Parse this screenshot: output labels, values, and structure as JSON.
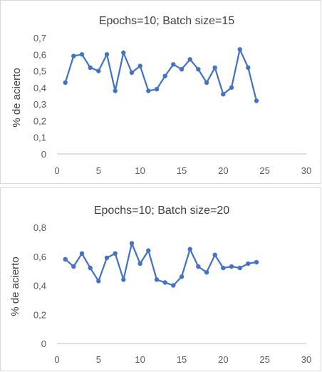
{
  "chart_data": [
    {
      "type": "line",
      "title": "Epochs=10; Batch size=15",
      "ylabel": "% de acierto",
      "xlabel": "",
      "xlim": [
        0,
        30
      ],
      "ylim": [
        0,
        0.7
      ],
      "xticks": [
        "0",
        "5",
        "10",
        "15",
        "20",
        "25",
        "30"
      ],
      "yticks": [
        "0",
        "0,1",
        "0,2",
        "0,3",
        "0,4",
        "0,5",
        "0,6",
        "0,7"
      ],
      "x": [
        1,
        2,
        3,
        4,
        5,
        6,
        7,
        8,
        9,
        10,
        11,
        12,
        13,
        14,
        15,
        16,
        17,
        18,
        19,
        20,
        21,
        22,
        23,
        24
      ],
      "y": [
        0.43,
        0.59,
        0.6,
        0.52,
        0.5,
        0.6,
        0.38,
        0.61,
        0.49,
        0.53,
        0.38,
        0.39,
        0.47,
        0.54,
        0.51,
        0.57,
        0.51,
        0.43,
        0.52,
        0.36,
        0.4,
        0.63,
        0.52,
        0.32
      ],
      "color": "#4472c4",
      "grid": false,
      "legend": "none"
    },
    {
      "type": "line",
      "title": "Epochs=10; Batch size=20",
      "ylabel": "% de acierto",
      "xlabel": "",
      "xlim": [
        0,
        30
      ],
      "ylim": [
        0,
        0.8
      ],
      "xticks": [
        "0",
        "5",
        "10",
        "15",
        "20",
        "25",
        "30"
      ],
      "yticks": [
        "0",
        "0,2",
        "0,4",
        "0,6",
        "0,8"
      ],
      "x": [
        1,
        2,
        3,
        4,
        5,
        6,
        7,
        8,
        9,
        10,
        11,
        12,
        13,
        14,
        15,
        16,
        17,
        18,
        19,
        20,
        21,
        22,
        23,
        24
      ],
      "y": [
        0.58,
        0.53,
        0.62,
        0.52,
        0.43,
        0.59,
        0.62,
        0.44,
        0.69,
        0.55,
        0.64,
        0.44,
        0.42,
        0.4,
        0.46,
        0.65,
        0.53,
        0.49,
        0.61,
        0.52,
        0.53,
        0.52,
        0.55,
        0.56
      ],
      "color": "#4472c4",
      "grid": false,
      "legend": "none"
    }
  ]
}
